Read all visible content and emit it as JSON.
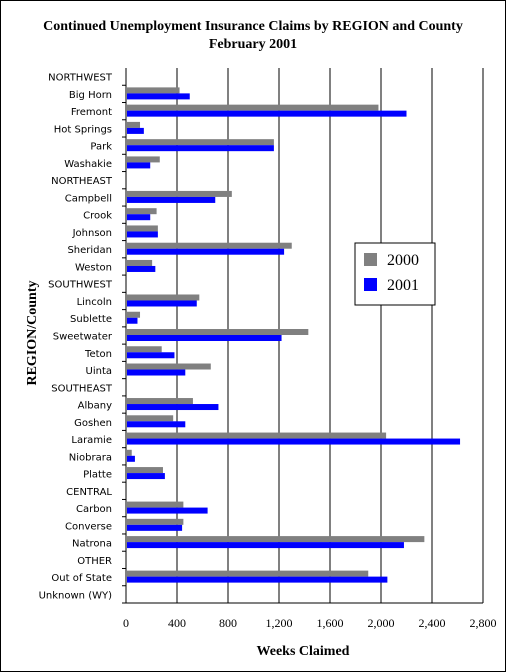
{
  "chart_data": {
    "type": "bar",
    "orientation": "horizontal",
    "title": "Continued Unemployment Insurance Claims by REGION and County",
    "subtitle": "February 2001",
    "xlabel": "Weeks Claimed",
    "ylabel": "REGION/County",
    "xlim": [
      0,
      2800
    ],
    "xticks": [
      0,
      400,
      800,
      1200,
      1600,
      2000,
      2400,
      2800
    ],
    "xtick_labels": [
      "0",
      "400",
      "800",
      "1,200",
      "1,600",
      "2,000",
      "2,400",
      "2,800"
    ],
    "grid": "vertical",
    "legend_position": "right",
    "categories": [
      "NORTHWEST",
      "Big Horn",
      "Fremont",
      "Hot Springs",
      "Park",
      "Washakie",
      "NORTHEAST",
      "Campbell",
      "Crook",
      "Johnson",
      "Sheridan",
      "Weston",
      "SOUTHWEST",
      "Lincoln",
      "Sublette",
      "Sweetwater",
      "Teton",
      "Uinta",
      "SOUTHEAST",
      "Albany",
      "Goshen",
      "Laramie",
      "Niobrara",
      "Platte",
      "CENTRAL",
      "Carbon",
      "Converse",
      "Natrona",
      "OTHER",
      "Out of State",
      "Unknown (WY)"
    ],
    "series": [
      {
        "name": "2000",
        "color": "#808080",
        "values": [
          null,
          420,
          1980,
          110,
          1160,
          265,
          null,
          830,
          240,
          250,
          1300,
          205,
          null,
          575,
          110,
          1430,
          280,
          665,
          null,
          525,
          370,
          2040,
          45,
          290,
          null,
          450,
          450,
          2340,
          null,
          1900,
          null
        ]
      },
      {
        "name": "2001",
        "color": "#0000ff",
        "values": [
          null,
          500,
          2200,
          140,
          1160,
          190,
          null,
          700,
          190,
          250,
          1240,
          230,
          null,
          555,
          90,
          1220,
          380,
          465,
          null,
          725,
          465,
          2620,
          70,
          305,
          null,
          640,
          440,
          2180,
          null,
          2050,
          null
        ]
      }
    ]
  }
}
